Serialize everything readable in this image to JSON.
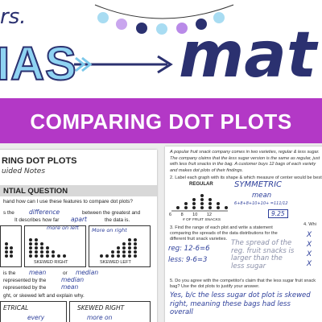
{
  "logo": {
    "prefix": "rs.",
    "name": "IAS",
    "subject": "mat"
  },
  "banner": {
    "title": "COMPARING DOT PLOTS"
  },
  "left_page": {
    "title": "RING DOT PLOTS",
    "subtitle": "uided Notes",
    "section": "NTIAL QUESTION",
    "question": "hand how can I use these features to compare dot plots?",
    "lines": [
      [
        "s the",
        "difference",
        "between the greatest and"
      ],
      [
        "It describes how far",
        "apart",
        "the data is."
      ],
      [
        "is the",
        "mean",
        "or",
        "median"
      ],
      [
        "represented by the",
        "median"
      ],
      [
        "represented by the",
        "mean"
      ]
    ],
    "boxes": [
      {
        "note": "more on left",
        "label": "SKEWED RIGHT"
      },
      {
        "note": "More on right",
        "label": "SKEWED LEFT"
      }
    ],
    "instruction": "ght, or skewed left and explain why.",
    "bottom": [
      {
        "label": "ETRICAL",
        "note": "every"
      },
      {
        "label": "SKEWED RIGHT",
        "note": "more on"
      }
    ]
  },
  "right_page": {
    "intro": "A popular fruit snack company comes in two varieties, regular & less sugar. The company claims that the less sugar version is the same as regular, just with less fruit snacks in the bag. A customer buys 12 bags of each variety and makes dot plots of their findings.",
    "q2": "2.  Label each graph with its shape & which measure of center would be best",
    "plot_label": "REGULAR",
    "axis_ticks": "6 8 10 12",
    "axis_title": "# OF FRUIT SNACKS",
    "shape_answer": "SYMMETRIC",
    "center_answer": "mean",
    "work": "6+8+8+10+10+\n=111/12",
    "mean_result": "9.25",
    "q3": "3.  Find the range of each plot and write a statement comparing the spreads of the data distributions for the different fruit snack varieties.",
    "range_regular": "reg: 12-6=6",
    "range_less": "less: 9-6=3",
    "spread_answer": "The spread of the reg. fruit snacks is larger than the less sugar",
    "q5": "5.  Do you agree with the competitor's claim that the less sugar fruit snack bag? Use the dot plots to justify your answer.",
    "claim_answer": "Yes, b/c the less sugar dot plot is skewed right, meaning these bags had less overall",
    "q4": "4. Whi",
    "marks": "X\nX\nX\nX"
  }
}
